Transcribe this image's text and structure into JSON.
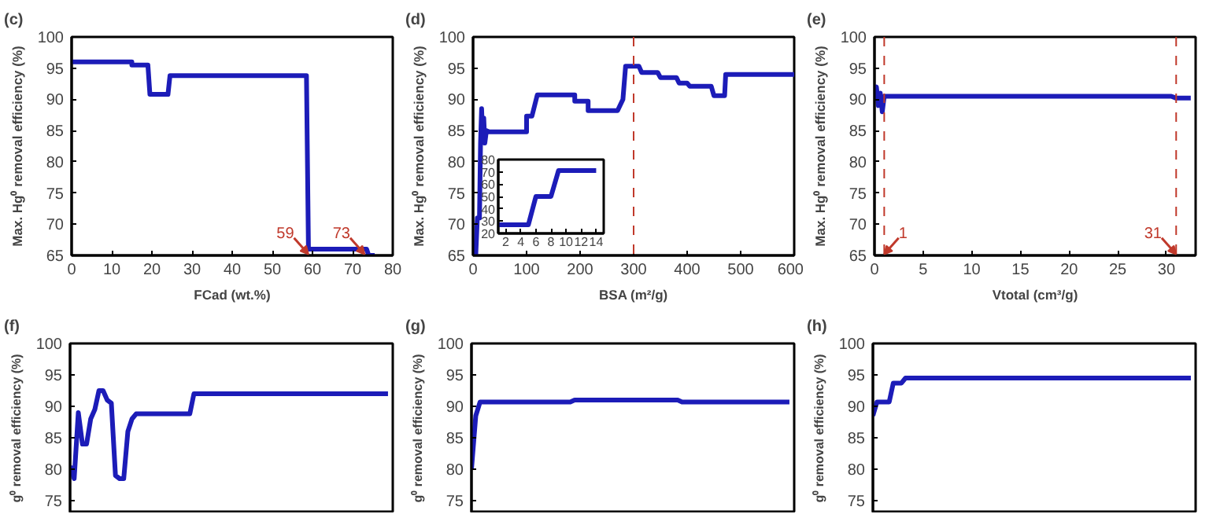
{
  "chart_data": [
    {
      "type": "line",
      "title": "(c)",
      "xlabel": "FCad (wt.%)",
      "ylabel": "Max. Hg⁰ removal efficiency (%)",
      "xlim": [
        0,
        80
      ],
      "xticks": [
        0,
        10,
        20,
        30,
        40,
        50,
        60,
        70,
        80
      ],
      "ylim": [
        65,
        100
      ],
      "yticks": [
        65,
        70,
        75,
        80,
        85,
        90,
        95,
        100
      ],
      "grid": false,
      "series": [
        {
          "color": "#1c1cb8",
          "x": [
            0,
            15,
            15,
            19,
            19.5,
            24,
            24.5,
            58.5,
            59,
            73.5,
            74,
            75.5
          ],
          "values": [
            96,
            96,
            95.5,
            95.5,
            90.8,
            90.8,
            93.8,
            93.8,
            66,
            66,
            65,
            65
          ]
        }
      ],
      "annotations": [
        {
          "text": "59",
          "x": 59,
          "y": 65
        },
        {
          "text": "73",
          "x": 73,
          "y": 65
        }
      ]
    },
    {
      "type": "line",
      "title": "(d)",
      "xlabel": "BSA (m²/g)",
      "ylabel": "Max. Hg⁰ removal efficiency (%)",
      "xlim": [
        0,
        600
      ],
      "xticks": [
        0,
        100,
        200,
        300,
        400,
        500,
        600
      ],
      "ylim": [
        65,
        100
      ],
      "yticks": [
        65,
        70,
        75,
        80,
        85,
        90,
        95,
        100
      ],
      "grid": false,
      "series": [
        {
          "color": "#1c1cb8",
          "x": [
            5,
            8,
            12,
            14,
            16,
            18,
            20,
            22,
            25,
            30,
            100,
            100,
            110,
            115,
            120,
            190,
            190,
            215,
            215,
            270,
            280,
            285,
            310,
            315,
            345,
            350,
            380,
            385,
            400,
            405,
            445,
            450,
            470,
            472,
            600
          ],
          "values": [
            65,
            71,
            71,
            83,
            88.5,
            84,
            87,
            83,
            85,
            84.8,
            84.8,
            87.3,
            87.3,
            89,
            90.7,
            90.7,
            89.7,
            89.7,
            88.2,
            88.2,
            90,
            95.3,
            95.3,
            94.3,
            94.3,
            93.5,
            93.5,
            92.6,
            92.6,
            92.1,
            92.1,
            90.6,
            90.6,
            94,
            94
          ]
        }
      ],
      "ref_lines": [
        {
          "axis": "x",
          "value": 300,
          "color": "#c0392b",
          "line_style": "dashed"
        }
      ]
    },
    {
      "type": "line",
      "xlim": [
        1,
        15
      ],
      "xticks": [
        2,
        4,
        6,
        8,
        10,
        12,
        14
      ],
      "ylim": [
        20,
        80
      ],
      "yticks": [
        20,
        30,
        40,
        50,
        60,
        70,
        80
      ],
      "grid": false,
      "series": [
        {
          "color": "#1c1cb8",
          "x": [
            1,
            5,
            6,
            8,
            9,
            14
          ],
          "values": [
            27,
            27,
            50,
            50,
            71,
            71
          ]
        }
      ]
    },
    {
      "type": "line",
      "title": "(e)",
      "xlabel": "Vtotal (cm³/g)",
      "ylabel": "Max. Hg⁰ removal efficiency (%)",
      "xlim": [
        0,
        33
      ],
      "xticks": [
        0,
        5,
        10,
        15,
        20,
        25,
        30
      ],
      "ylim": [
        65,
        100
      ],
      "yticks": [
        65,
        70,
        75,
        80,
        85,
        90,
        95,
        100
      ],
      "grid": false,
      "series": [
        {
          "color": "#1c1cb8",
          "x": [
            0,
            0.2,
            0.4,
            0.6,
            0.8,
            1,
            30.5,
            31,
            32.5
          ],
          "values": [
            91,
            92,
            89,
            91,
            88,
            90.5,
            90.5,
            90.2,
            90.2
          ]
        }
      ],
      "ref_lines": [
        {
          "axis": "x",
          "value": 1,
          "color": "#c0392b",
          "line_style": "dashed"
        },
        {
          "axis": "x",
          "value": 31,
          "color": "#c0392b",
          "line_style": "dashed"
        }
      ],
      "annotations": [
        {
          "text": "1",
          "x": 1,
          "y": 65
        },
        {
          "text": "31",
          "x": 31,
          "y": 65
        }
      ]
    },
    {
      "type": "line",
      "title": "(f)",
      "ylabel": "g⁰ removal efficiency (%)",
      "ylim": [
        73,
        100
      ],
      "yticks": [
        75,
        80,
        85,
        90,
        95,
        100
      ],
      "grid": false,
      "tick_labels": "y",
      "categories": [
        null,
        null,
        null,
        null,
        null,
        null,
        null,
        null,
        null,
        null,
        null,
        null,
        null,
        null,
        null,
        null,
        null,
        null,
        null,
        null,
        null,
        null,
        null,
        null,
        null,
        null,
        null,
        null,
        null,
        null,
        null,
        null,
        null,
        null,
        null,
        null,
        null,
        null,
        null,
        null,
        null,
        null,
        null,
        null,
        null,
        null,
        null,
        null,
        null,
        null,
        null,
        null,
        null,
        null,
        null,
        null,
        null,
        null,
        null,
        null,
        null,
        null,
        null,
        null,
        null,
        null,
        null,
        null,
        null,
        null,
        null,
        null,
        null,
        null,
        null,
        null,
        null,
        null
      ],
      "series": [
        {
          "color": "#1c1cb8",
          "values": [
            80.5,
            78.5,
            89,
            84,
            84,
            88,
            89.5,
            92.5,
            92.5,
            91,
            90.5,
            79,
            78.5,
            78.5,
            86,
            88,
            88.8,
            88.8,
            88.8,
            88.8,
            88.8,
            88.8,
            88.8,
            88.8,
            88.8,
            88.8,
            88.8,
            88.8,
            88.8,
            88.8,
            92,
            92,
            92,
            92,
            92,
            92,
            92,
            92,
            92,
            92,
            92,
            92,
            92,
            92,
            92,
            92,
            92,
            92,
            92,
            92,
            92,
            92,
            92,
            92,
            92,
            92,
            92,
            92,
            92,
            92,
            92,
            92,
            92,
            92,
            92,
            92,
            92,
            92,
            92,
            92,
            92,
            92,
            92,
            92,
            92,
            92,
            92,
            92
          ]
        }
      ]
    },
    {
      "type": "line",
      "title": "(g)",
      "ylabel": "g⁰ removal efficiency (%)",
      "ylim": [
        73,
        100
      ],
      "yticks": [
        75,
        80,
        85,
        90,
        95,
        100
      ],
      "grid": false,
      "tick_labels": "y",
      "categories": [
        null,
        null,
        null,
        null,
        null,
        null,
        null,
        null,
        null,
        null,
        null,
        null,
        null,
        null,
        null,
        null,
        null,
        null,
        null,
        null,
        null,
        null,
        null,
        null,
        null,
        null,
        null,
        null,
        null,
        null,
        null,
        null,
        null,
        null,
        null,
        null,
        null,
        null,
        null,
        null,
        null,
        null,
        null,
        null,
        null,
        null,
        null,
        null,
        null,
        null,
        null,
        null,
        null,
        null,
        null,
        null,
        null,
        null,
        null,
        null,
        null,
        null,
        null,
        null,
        null,
        null,
        null,
        null,
        null,
        null,
        null,
        null,
        null,
        null,
        null
      ],
      "series": [
        {
          "color": "#1c1cb8",
          "values": [
            80,
            88.5,
            90.7,
            90.7,
            90.7,
            90.7,
            90.7,
            90.7,
            90.7,
            90.7,
            90.7,
            90.7,
            90.7,
            90.7,
            90.7,
            90.7,
            90.7,
            90.7,
            90.7,
            90.7,
            90.7,
            90.7,
            90.7,
            90.7,
            91,
            91,
            91,
            91,
            91,
            91,
            91,
            91,
            91,
            91,
            91,
            91,
            91,
            91,
            91,
            91,
            91,
            91,
            91,
            91,
            91,
            91,
            91,
            91,
            91,
            90.7,
            90.7,
            90.7,
            90.7,
            90.7,
            90.7,
            90.7,
            90.7,
            90.7,
            90.7,
            90.7,
            90.7,
            90.7,
            90.7,
            90.7,
            90.7,
            90.7,
            90.7,
            90.7,
            90.7,
            90.7,
            90.7,
            90.7,
            90.7,
            90.7,
            90.7
          ]
        }
      ]
    },
    {
      "type": "line",
      "title": "(h)",
      "ylabel": "g⁰ removal efficiency (%)",
      "ylim": [
        73,
        100
      ],
      "yticks": [
        75,
        80,
        85,
        90,
        95,
        100
      ],
      "grid": false,
      "tick_labels": "y",
      "categories": [
        null,
        null,
        null,
        null,
        null,
        null,
        null,
        null,
        null,
        null,
        null,
        null,
        null,
        null,
        null,
        null,
        null,
        null,
        null,
        null,
        null,
        null,
        null,
        null,
        null,
        null,
        null,
        null,
        null,
        null,
        null,
        null,
        null,
        null,
        null,
        null,
        null,
        null,
        null,
        null,
        null,
        null,
        null,
        null,
        null,
        null,
        null,
        null,
        null,
        null,
        null,
        null,
        null,
        null,
        null,
        null,
        null,
        null,
        null,
        null,
        null,
        null,
        null,
        null,
        null,
        null,
        null,
        null,
        null,
        null,
        null,
        null,
        null,
        null,
        null,
        null,
        null,
        null,
        null
      ],
      "series": [
        {
          "color": "#1c1cb8",
          "values": [
            88.5,
            90.7,
            90.7,
            90.7,
            90.7,
            93.7,
            93.7,
            93.7,
            94.5,
            94.5,
            94.5,
            94.5,
            94.5,
            94.5,
            94.5,
            94.5,
            94.5,
            94.5,
            94.5,
            94.5,
            94.5,
            94.5,
            94.5,
            94.5,
            94.5,
            94.5,
            94.5,
            94.5,
            94.5,
            94.5,
            94.5,
            94.5,
            94.5,
            94.5,
            94.5,
            94.5,
            94.5,
            94.5,
            94.5,
            94.5,
            94.5,
            94.5,
            94.5,
            94.5,
            94.5,
            94.5,
            94.5,
            94.5,
            94.5,
            94.5,
            94.5,
            94.5,
            94.5,
            94.5,
            94.5,
            94.5,
            94.5,
            94.5,
            94.5,
            94.5,
            94.5,
            94.5,
            94.5,
            94.5,
            94.5,
            94.5,
            94.5,
            94.5,
            94.5,
            94.5,
            94.5,
            94.5,
            94.5,
            94.5,
            94.5,
            94.5,
            94.5,
            94.5,
            94.5
          ]
        }
      ]
    }
  ]
}
